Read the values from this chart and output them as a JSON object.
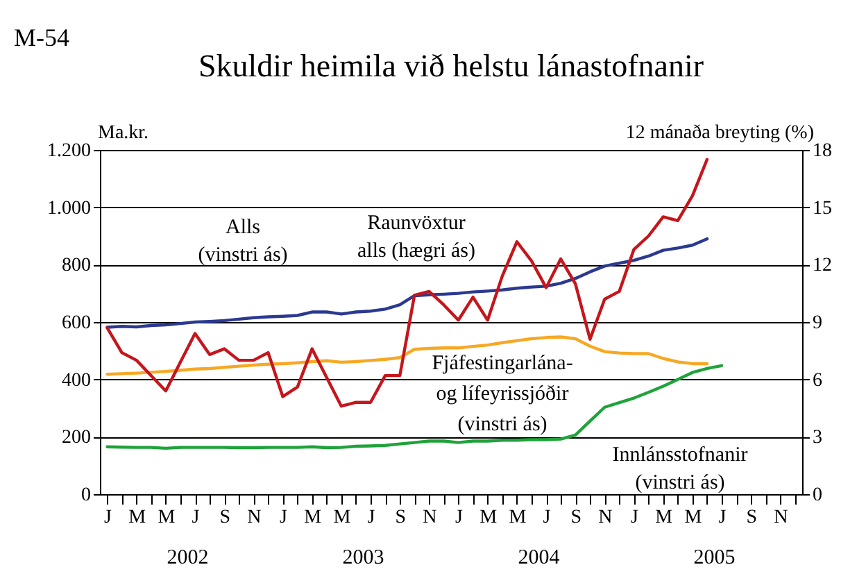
{
  "chart_data": {
    "type": "line",
    "title": "Skuldir heimila við helstu lánastofnanir",
    "ylabel": "Ma.kr.",
    "y2label": "12 mánaða breyting (%)",
    "annotations": [
      "M-54",
      "2002",
      "2003",
      "2004",
      "2005"
    ],
    "categories": [
      "J",
      null,
      "M",
      null,
      "M",
      null,
      "J",
      null,
      "S",
      null,
      "N",
      null,
      "J",
      null,
      "M",
      null,
      "M",
      null,
      "J",
      null,
      "S",
      null,
      "N",
      null,
      "J",
      null,
      "M",
      null,
      "M",
      null,
      "J",
      null,
      "S",
      null,
      "N",
      null,
      "J",
      null,
      "M",
      null,
      "M",
      null,
      "J",
      null,
      "S",
      null,
      "N",
      null
    ],
    "ylim": [
      0,
      1200
    ],
    "yticks": [
      0,
      200,
      400,
      600,
      800,
      {
        "value": 1000,
        "label": "1.000"
      },
      {
        "value": 1200,
        "label": "1.200"
      }
    ],
    "y2lim": [
      0,
      18
    ],
    "y2ticks": [
      0,
      3,
      6,
      9,
      12,
      15,
      18
    ],
    "grid": "y",
    "legend": false,
    "line_style": "solid",
    "series": [
      {
        "name": "Alls\n(vinstri ás)",
        "color": "#2b3990",
        "values": [
          582,
          585,
          583,
          588,
          590,
          595,
          600,
          602,
          605,
          610,
          615,
          618,
          620,
          623,
          635,
          635,
          628,
          635,
          638,
          645,
          660,
          692,
          695,
          697,
          700,
          705,
          708,
          712,
          718,
          722,
          725,
          735,
          752,
          775,
          795,
          805,
          815,
          830,
          850,
          858,
          868,
          890,
          null,
          null,
          null,
          null,
          null,
          null
        ]
      },
      {
        "name": "Raunvöxtur\nalls (hægri ás)",
        "color": "#c4161c",
        "axis": "y2",
        "values": [
          8.7,
          7.4,
          7.0,
          6.2,
          5.4,
          6.9,
          8.4,
          7.3,
          7.6,
          7.0,
          7.0,
          7.4,
          5.1,
          5.6,
          7.6,
          6.1,
          4.6,
          4.8,
          4.8,
          6.2,
          6.2,
          10.4,
          10.6,
          9.9,
          9.1,
          10.3,
          9.1,
          11.4,
          13.2,
          12.2,
          10.8,
          12.3,
          11.0,
          8.1,
          10.2,
          10.6,
          12.8,
          13.5,
          14.5,
          14.3,
          15.6,
          17.5,
          null,
          null,
          null,
          null,
          null,
          null
        ]
      },
      {
        "name": "Fjáfestingarlána-\nog lífeyrissjóðir\n(vinstri ás)",
        "color": "#f7a823",
        "values": [
          418,
          420,
          422,
          425,
          428,
          432,
          436,
          438,
          442,
          446,
          450,
          453,
          455,
          458,
          462,
          465,
          460,
          462,
          466,
          470,
          476,
          505,
          508,
          510,
          510,
          515,
          520,
          528,
          535,
          542,
          546,
          548,
          542,
          516,
          497,
          492,
          490,
          490,
          473,
          461,
          455,
          455,
          null,
          null,
          null,
          null,
          null,
          null
        ]
      },
      {
        "name": "Innlánsstofnanir\n(vinstri ás)",
        "color": "#1fa33a",
        "values": [
          165,
          164,
          163,
          163,
          160,
          163,
          163,
          163,
          163,
          162,
          162,
          163,
          163,
          163,
          165,
          162,
          163,
          167,
          168,
          170,
          175,
          180,
          185,
          185,
          180,
          185,
          185,
          188,
          188,
          190,
          190,
          192,
          206,
          255,
          303,
          319,
          335,
          355,
          376,
          400,
          424,
          438,
          448,
          null,
          null,
          null,
          null,
          null
        ]
      }
    ]
  }
}
